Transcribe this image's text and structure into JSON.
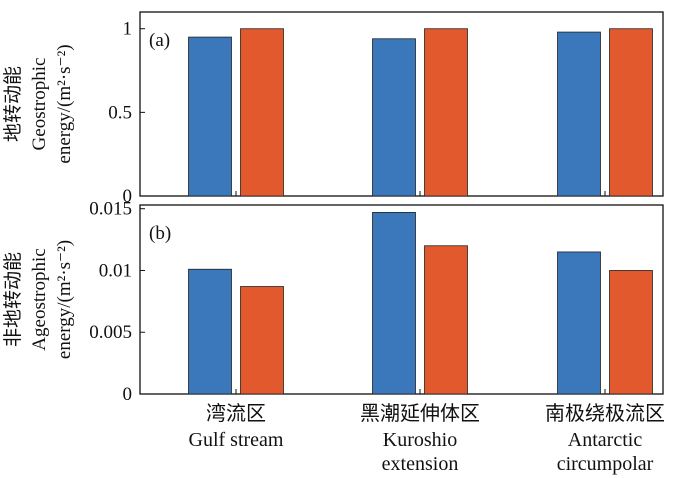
{
  "chart_data": [
    {
      "type": "bar",
      "panel_label": "(a)",
      "ylabel_lines": [
        "地转动能",
        "Geostrophic",
        "energy/(m²·s⁻²)"
      ],
      "yticks": [
        {
          "v": 0,
          "label": "0"
        },
        {
          "v": 0.5,
          "label": "0.5"
        },
        {
          "v": 1,
          "label": "1"
        }
      ],
      "ylim": [
        0,
        1.1
      ],
      "categories": [
        "湾流区 Gulf stream",
        "黑潮延伸体区 Kuroshio extension",
        "南极绕极流区 Antarctic circumpolar"
      ],
      "series": [
        {
          "color": "#3a78bb",
          "values": [
            0.95,
            0.94,
            0.98
          ]
        },
        {
          "color": "#e3592e",
          "values": [
            1.0,
            1.0,
            1.0
          ]
        }
      ]
    },
    {
      "type": "bar",
      "panel_label": "(b)",
      "ylabel_lines": [
        "非地转动能",
        "Ageostrophic",
        "energy/(m²·s⁻²)"
      ],
      "yticks": [
        {
          "v": 0,
          "label": "0"
        },
        {
          "v": 0.005,
          "label": "0.005"
        },
        {
          "v": 0.01,
          "label": "0.01"
        },
        {
          "v": 0.015,
          "label": "0.015"
        }
      ],
      "ylim": [
        0,
        0.0153
      ],
      "categories": [
        "湾流区 Gulf stream",
        "黑潮延伸体区 Kuroshio extension",
        "南极绕极流区 Antarctic circumpolar"
      ],
      "series": [
        {
          "color": "#3a78bb",
          "values": [
            0.0101,
            0.0147,
            0.0115
          ]
        },
        {
          "color": "#e3592e",
          "values": [
            0.0087,
            0.012,
            0.01
          ]
        }
      ]
    }
  ],
  "xaxis_labels": [
    {
      "cn": "湾流区",
      "en": [
        "Gulf stream"
      ]
    },
    {
      "cn": "黑潮延伸体区",
      "en": [
        "Kuroshio",
        "extension"
      ]
    },
    {
      "cn": "南极绕极流区",
      "en": [
        "Antarctic",
        "circumpolar"
      ]
    }
  ]
}
